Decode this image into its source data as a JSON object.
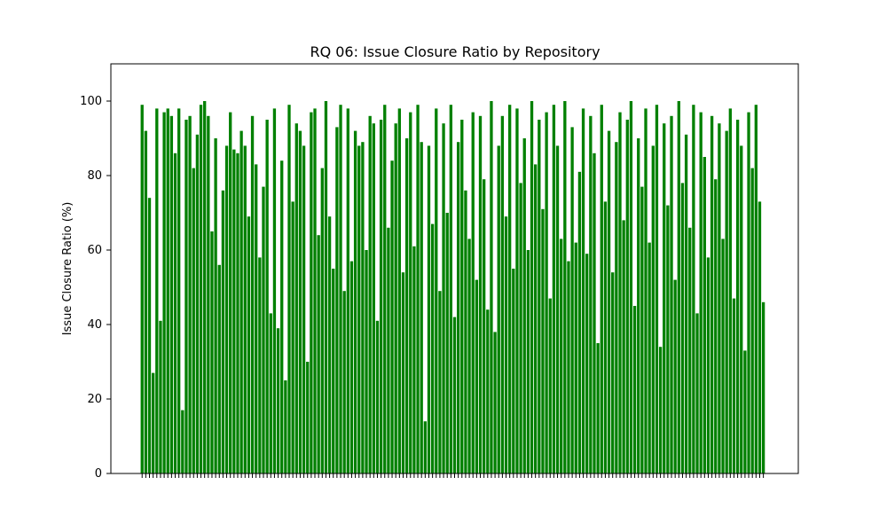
{
  "chart_data": {
    "type": "bar",
    "title": "RQ 06: Issue Closure Ratio by Repository",
    "xlabel": "",
    "ylabel": "Issue Closure Ratio (%)",
    "ylim": [
      0,
      110
    ],
    "yticks": [
      0,
      20,
      40,
      60,
      80,
      100
    ],
    "xlim": [
      -8.5,
      178.5
    ],
    "bar_count": 170,
    "values": [
      99.0,
      92.0,
      74.0,
      27.0,
      98.0,
      41.0,
      97.0,
      98.0,
      96.0,
      86.0,
      98.0,
      17.0,
      95.0,
      96.0,
      82.0,
      91.0,
      99.0,
      100.0,
      96.0,
      65.0,
      90.0,
      56.0,
      76.0,
      88.0,
      97.0,
      87.0,
      86.0,
      92.0,
      88.0,
      69.0,
      96.0,
      83.0,
      58.0,
      77.0,
      95.0,
      43.0,
      98.0,
      39.0,
      84.0,
      25.0,
      99.0,
      73.0,
      94.0,
      92.0,
      88.0,
      30.0,
      97.0,
      98.0,
      64.0,
      82.0,
      100.0,
      69.0,
      55.0,
      93.0,
      99.0,
      49.0,
      98.0,
      57.0,
      92.0,
      88.0,
      89.0,
      60.0,
      96.0,
      94.0,
      41.0,
      95.0,
      99.0,
      66.0,
      84.0,
      94.0,
      98.0,
      54.0,
      90.0,
      97.0,
      61.0,
      99.0,
      89.0,
      14.0,
      88.0,
      67.0,
      98.0,
      49.0,
      94.0,
      70.0,
      99.0,
      42.0,
      89.0,
      95.0,
      76.0,
      63.0,
      97.0,
      52.0,
      96.0,
      79.0,
      44.0,
      100.0,
      38.0,
      88.0,
      96.0,
      69.0,
      99.0,
      55.0,
      98.0,
      78.0,
      90.0,
      60.0,
      100.0,
      83.0,
      95.0,
      71.0,
      97.0,
      47.0,
      99.0,
      88.0,
      63.0,
      100.0,
      57.0,
      93.0,
      62.0,
      81.0,
      98.0,
      59.0,
      96.0,
      86.0,
      35.0,
      99.0,
      73.0,
      92.0,
      54.0,
      89.0,
      97.0,
      68.0,
      95.0,
      100.0,
      45.0,
      90.0,
      77.0,
      98.0,
      62.0,
      88.0,
      99.0,
      34.0,
      94.0,
      72.0,
      96.0,
      52.0,
      100.0,
      78.0,
      91.0,
      66.0,
      99.0,
      43.0,
      97.0,
      85.0,
      58.0,
      96.0,
      79.0,
      94.0,
      63.0,
      92.0,
      98.0,
      47.0,
      95.0,
      88.0,
      33.0,
      97.0,
      82.0,
      99.0,
      73.0,
      46.0
    ],
    "bar_color": "#008000",
    "grid": false,
    "legend": false
  }
}
